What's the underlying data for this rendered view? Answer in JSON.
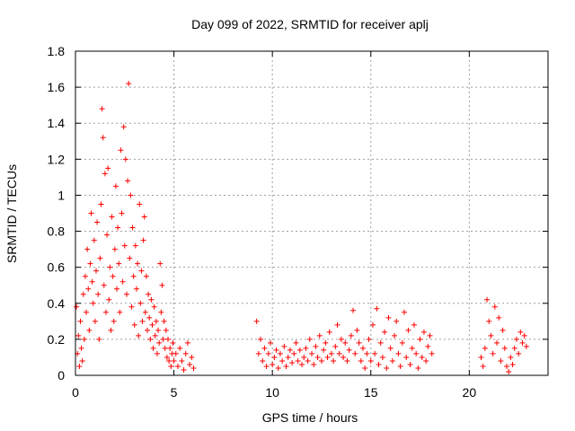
{
  "chart_data": {
    "type": "scatter",
    "title": "Day 099 of 2022, SRMTID for receiver aplj",
    "xlabel": "GPS time / hours",
    "ylabel": "SRMTID / TECUs",
    "xlim": [
      0,
      24
    ],
    "ylim": [
      0,
      1.8
    ],
    "x_ticks": [
      0,
      5,
      10,
      15,
      20
    ],
    "x_tick_labels": [
      "0",
      "5",
      "10",
      "15",
      "20"
    ],
    "y_ticks": [
      0,
      0.2,
      0.4,
      0.6,
      0.8,
      1.0,
      1.2,
      1.4,
      1.6,
      1.8
    ],
    "y_tick_labels": [
      "0",
      "0.2",
      "0.4",
      "0.6",
      "0.8",
      "1",
      "1.2",
      "1.4",
      "1.6",
      "1.8"
    ],
    "grid": true,
    "marker": "plus",
    "series": [
      {
        "name": "SRMTID",
        "color": "#ff0000",
        "points": [
          [
            0.05,
            0.38
          ],
          [
            0.1,
            0.12
          ],
          [
            0.15,
            0.22
          ],
          [
            0.2,
            0.05
          ],
          [
            0.25,
            0.3
          ],
          [
            0.3,
            0.15
          ],
          [
            0.35,
            0.08
          ],
          [
            0.4,
            0.45
          ],
          [
            0.45,
            0.2
          ],
          [
            0.5,
            0.55
          ],
          [
            0.55,
            0.35
          ],
          [
            0.6,
            0.7
          ],
          [
            0.65,
            0.48
          ],
          [
            0.7,
            0.25
          ],
          [
            0.75,
            0.62
          ],
          [
            0.8,
            0.9
          ],
          [
            0.85,
            0.52
          ],
          [
            0.9,
            0.4
          ],
          [
            0.95,
            0.75
          ],
          [
            1.0,
            0.3
          ],
          [
            1.05,
            0.58
          ],
          [
            1.1,
            0.85
          ],
          [
            1.15,
            0.45
          ],
          [
            1.2,
            0.2
          ],
          [
            1.25,
            0.65
          ],
          [
            1.3,
            0.95
          ],
          [
            1.35,
            1.48
          ],
          [
            1.4,
            1.32
          ],
          [
            1.45,
            0.5
          ],
          [
            1.5,
            1.12
          ],
          [
            1.55,
            0.35
          ],
          [
            1.6,
            0.78
          ],
          [
            1.65,
            1.15
          ],
          [
            1.7,
            0.42
          ],
          [
            1.75,
            0.6
          ],
          [
            1.8,
            0.25
          ],
          [
            1.85,
            0.88
          ],
          [
            1.9,
            0.55
          ],
          [
            1.95,
            0.3
          ],
          [
            2.0,
            0.7
          ],
          [
            2.05,
            1.05
          ],
          [
            2.1,
            0.48
          ],
          [
            2.15,
            0.82
          ],
          [
            2.2,
            0.62
          ],
          [
            2.25,
            0.35
          ],
          [
            2.3,
            1.25
          ],
          [
            2.35,
            0.9
          ],
          [
            2.4,
            0.52
          ],
          [
            2.45,
            1.38
          ],
          [
            2.5,
            0.72
          ],
          [
            2.55,
            1.2
          ],
          [
            2.6,
            0.45
          ],
          [
            2.65,
            1.08
          ],
          [
            2.7,
            1.62
          ],
          [
            2.75,
            0.65
          ],
          [
            2.8,
            1.0
          ],
          [
            2.85,
            0.38
          ],
          [
            2.9,
            0.82
          ],
          [
            2.95,
            0.55
          ],
          [
            3.0,
            0.28
          ],
          [
            3.05,
            0.72
          ],
          [
            3.1,
            0.48
          ],
          [
            3.15,
            0.62
          ],
          [
            3.2,
            0.22
          ],
          [
            3.25,
            0.95
          ],
          [
            3.3,
            0.4
          ],
          [
            3.35,
            0.58
          ],
          [
            3.4,
            0.3
          ],
          [
            3.45,
            0.75
          ],
          [
            3.5,
            0.88
          ],
          [
            3.55,
            0.35
          ],
          [
            3.6,
            0.55
          ],
          [
            3.65,
            0.25
          ],
          [
            3.7,
            0.45
          ],
          [
            3.75,
            0.32
          ],
          [
            3.8,
            0.2
          ],
          [
            3.85,
            0.42
          ],
          [
            3.9,
            0.28
          ],
          [
            3.95,
            0.15
          ],
          [
            4.0,
            0.38
          ],
          [
            4.05,
            0.22
          ],
          [
            4.1,
            0.3
          ],
          [
            4.15,
            0.12
          ],
          [
            4.2,
            0.25
          ],
          [
            4.25,
            0.18
          ],
          [
            4.3,
            0.62
          ],
          [
            4.35,
            0.35
          ],
          [
            4.4,
            0.5
          ],
          [
            4.45,
            0.2
          ],
          [
            4.5,
            0.3
          ],
          [
            4.55,
            0.15
          ],
          [
            4.6,
            0.25
          ],
          [
            4.65,
            0.1
          ],
          [
            4.7,
            0.2
          ],
          [
            4.75,
            0.08
          ],
          [
            4.8,
            0.15
          ],
          [
            4.85,
            0.05
          ],
          [
            4.9,
            0.12
          ],
          [
            4.95,
            0.18
          ],
          [
            5.0,
            0.08
          ],
          [
            5.1,
            0.12
          ],
          [
            5.2,
            0.05
          ],
          [
            5.3,
            0.15
          ],
          [
            5.4,
            0.08
          ],
          [
            5.5,
            0.03
          ],
          [
            5.6,
            0.12
          ],
          [
            5.7,
            0.18
          ],
          [
            5.8,
            0.06
          ],
          [
            5.9,
            0.1
          ],
          [
            6.0,
            0.04
          ],
          [
            9.2,
            0.3
          ],
          [
            9.3,
            0.12
          ],
          [
            9.4,
            0.2
          ],
          [
            9.5,
            0.08
          ],
          [
            9.6,
            0.15
          ],
          [
            9.7,
            0.05
          ],
          [
            9.8,
            0.12
          ],
          [
            9.9,
            0.18
          ],
          [
            10.0,
            0.06
          ],
          [
            10.1,
            0.1
          ],
          [
            10.2,
            0.14
          ],
          [
            10.3,
            0.04
          ],
          [
            10.4,
            0.12
          ],
          [
            10.5,
            0.08
          ],
          [
            10.6,
            0.16
          ],
          [
            10.7,
            0.05
          ],
          [
            10.8,
            0.1
          ],
          [
            10.9,
            0.14
          ],
          [
            11.0,
            0.07
          ],
          [
            11.1,
            0.12
          ],
          [
            11.2,
            0.18
          ],
          [
            11.3,
            0.08
          ],
          [
            11.4,
            0.14
          ],
          [
            11.5,
            0.06
          ],
          [
            11.6,
            0.1
          ],
          [
            11.7,
            0.15
          ],
          [
            11.8,
            0.08
          ],
          [
            11.9,
            0.2
          ],
          [
            12.0,
            0.12
          ],
          [
            12.1,
            0.06
          ],
          [
            12.2,
            0.16
          ],
          [
            12.3,
            0.1
          ],
          [
            12.4,
            0.22
          ],
          [
            12.5,
            0.08
          ],
          [
            12.6,
            0.14
          ],
          [
            12.7,
            0.18
          ],
          [
            12.8,
            0.1
          ],
          [
            12.9,
            0.24
          ],
          [
            13.0,
            0.12
          ],
          [
            13.1,
            0.08
          ],
          [
            13.2,
            0.16
          ],
          [
            13.3,
            0.28
          ],
          [
            13.4,
            0.12
          ],
          [
            13.5,
            0.2
          ],
          [
            13.6,
            0.1
          ],
          [
            13.7,
            0.18
          ],
          [
            13.8,
            0.08
          ],
          [
            13.9,
            0.14
          ],
          [
            14.0,
            0.22
          ],
          [
            14.1,
            0.36
          ],
          [
            14.2,
            0.12
          ],
          [
            14.3,
            0.25
          ],
          [
            14.4,
            0.18
          ],
          [
            14.5,
            0.08
          ],
          [
            14.6,
            0.15
          ],
          [
            14.7,
            0.04
          ],
          [
            14.8,
            0.12
          ],
          [
            14.9,
            0.2
          ],
          [
            15.0,
            0.08
          ],
          [
            15.1,
            0.28
          ],
          [
            15.2,
            0.12
          ],
          [
            15.3,
            0.37
          ],
          [
            15.4,
            0.06
          ],
          [
            15.5,
            0.18
          ],
          [
            15.6,
            0.1
          ],
          [
            15.7,
            0.24
          ],
          [
            15.8,
            0.04
          ],
          [
            15.9,
            0.32
          ],
          [
            16.0,
            0.15
          ],
          [
            16.1,
            0.08
          ],
          [
            16.2,
            0.22
          ],
          [
            16.3,
            0.3
          ],
          [
            16.4,
            0.12
          ],
          [
            16.5,
            0.05
          ],
          [
            16.6,
            0.18
          ],
          [
            16.7,
            0.35
          ],
          [
            16.8,
            0.1
          ],
          [
            16.9,
            0.25
          ],
          [
            17.0,
            0.06
          ],
          [
            17.1,
            0.15
          ],
          [
            17.2,
            0.28
          ],
          [
            17.3,
            0.12
          ],
          [
            17.4,
            0.04
          ],
          [
            17.5,
            0.2
          ],
          [
            17.6,
            0.1
          ],
          [
            17.7,
            0.24
          ],
          [
            17.8,
            0.08
          ],
          [
            17.9,
            0.16
          ],
          [
            18.0,
            0.22
          ],
          [
            18.1,
            0.12
          ],
          [
            20.6,
            0.1
          ],
          [
            20.7,
            0.05
          ],
          [
            20.8,
            0.15
          ],
          [
            20.9,
            0.42
          ],
          [
            21.0,
            0.3
          ],
          [
            21.1,
            0.22
          ],
          [
            21.2,
            0.12
          ],
          [
            21.3,
            0.38
          ],
          [
            21.4,
            0.18
          ],
          [
            21.5,
            0.32
          ],
          [
            21.6,
            0.08
          ],
          [
            21.7,
            0.25
          ],
          [
            21.8,
            0.15
          ],
          [
            21.9,
            0.05
          ],
          [
            22.0,
            0.02
          ],
          [
            22.1,
            0.1
          ],
          [
            22.2,
            0.06
          ],
          [
            22.3,
            0.15
          ],
          [
            22.4,
            0.2
          ],
          [
            22.5,
            0.12
          ],
          [
            22.6,
            0.24
          ],
          [
            22.7,
            0.18
          ],
          [
            22.8,
            0.22
          ],
          [
            22.9,
            0.16
          ]
        ]
      }
    ]
  }
}
